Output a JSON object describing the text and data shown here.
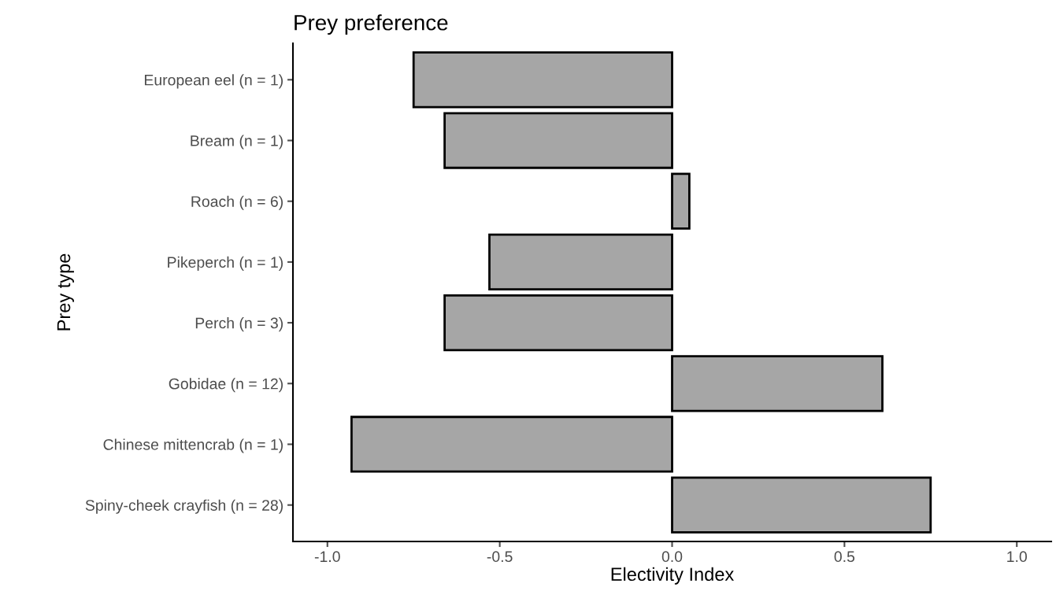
{
  "chart_data": {
    "type": "bar",
    "orientation": "horizontal",
    "title": "Prey preference",
    "xlabel": "Electivity Index",
    "ylabel": "Prey type",
    "categories": [
      "European eel (n = 1)",
      "Bream (n = 1)",
      "Roach (n = 6)",
      "Pikeperch (n = 1)",
      "Perch (n = 3)",
      "Gobidae (n = 12)",
      "Chinese mittencrab (n = 1)",
      "Spiny-cheek crayfish (n = 28)"
    ],
    "values": [
      -0.75,
      -0.66,
      0.05,
      -0.53,
      -0.66,
      0.61,
      -0.93,
      0.75
    ],
    "color": "#a6a6a6",
    "xlim": [
      -1.1,
      1.1
    ],
    "xticks": [
      {
        "value": -1,
        "label": "-1.0"
      },
      {
        "value": -0.5,
        "label": "-0.5"
      },
      {
        "value": 0,
        "label": "0.0"
      },
      {
        "value": 0.5,
        "label": "0.5"
      },
      {
        "value": 1,
        "label": "1.0"
      }
    ],
    "grid": false
  }
}
